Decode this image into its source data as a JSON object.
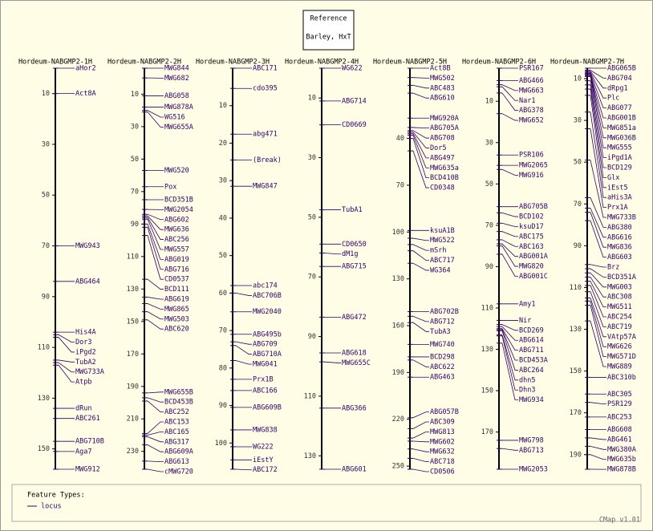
{
  "reference": {
    "title": "Reference",
    "label": "Barley, HxT"
  },
  "maps": [
    {
      "title": "Hordeum-NABGMP2-1H",
      "lim": [
        0,
        158
      ],
      "ticks": [
        10,
        30,
        50,
        70,
        90,
        110,
        130,
        150
      ],
      "features": [
        {
          "name": "aHor2",
          "pos": 0
        },
        {
          "name": "Act8A",
          "pos": 10
        },
        {
          "name": "MWG943",
          "pos": 70
        },
        {
          "name": "ABG464",
          "pos": 84
        },
        {
          "name": "His4A",
          "pos": 104
        },
        {
          "name": "Dor3",
          "pos": 105
        },
        {
          "name": "iPgd2",
          "pos": 106
        },
        {
          "name": "TubA2",
          "pos": 115
        },
        {
          "name": "MWG733A",
          "pos": 116
        },
        {
          "name": "Atpb",
          "pos": 117
        },
        {
          "name": "dRun",
          "pos": 134
        },
        {
          "name": "ABC261",
          "pos": 138
        },
        {
          "name": "ABG710B",
          "pos": 147
        },
        {
          "name": "Aga7",
          "pos": 151
        },
        {
          "name": "MWG912",
          "pos": 158
        }
      ]
    },
    {
      "title": "Hordeum-NABGMP2-2H",
      "lim": [
        -6,
        241
      ],
      "ticks": [
        10,
        30,
        50,
        70,
        90,
        110,
        130,
        150,
        170,
        190,
        210,
        230
      ],
      "features": [
        {
          "name": "MWG844",
          "pos": -6
        },
        {
          "name": "MWG682",
          "pos": 0
        },
        {
          "name": "ABG058",
          "pos": 11
        },
        {
          "name": "MWG878A",
          "pos": 18
        },
        {
          "name": "WG516",
          "pos": 20
        },
        {
          "name": "MWG655A",
          "pos": 21
        },
        {
          "name": "MWG520",
          "pos": 57
        },
        {
          "name": "Pox",
          "pos": 67
        },
        {
          "name": "BCD351B",
          "pos": 75
        },
        {
          "name": "MWG2054",
          "pos": 81
        },
        {
          "name": "ABG602",
          "pos": 84
        },
        {
          "name": "MWG636",
          "pos": 85
        },
        {
          "name": "ABC256",
          "pos": 86
        },
        {
          "name": "MWG557",
          "pos": 87
        },
        {
          "name": "ABG019",
          "pos": 90
        },
        {
          "name": "ABG716",
          "pos": 92
        },
        {
          "name": "CD0537",
          "pos": 97
        },
        {
          "name": "BCD111",
          "pos": 124
        },
        {
          "name": "ABG619",
          "pos": 135
        },
        {
          "name": "MWG865",
          "pos": 139
        },
        {
          "name": "MWG503",
          "pos": 144
        },
        {
          "name": "ABC620",
          "pos": 149
        },
        {
          "name": "MWG655B",
          "pos": 194
        },
        {
          "name": "BCD453B",
          "pos": 197
        },
        {
          "name": "ABC252",
          "pos": 199
        },
        {
          "name": "ABC153",
          "pos": 219
        },
        {
          "name": "ABC165",
          "pos": 220
        },
        {
          "name": "ABG317",
          "pos": 221
        },
        {
          "name": "ABG609A",
          "pos": 226
        },
        {
          "name": "ABG613",
          "pos": 236
        },
        {
          "name": "cMWG720",
          "pos": 241
        }
      ]
    },
    {
      "title": "Hordeum-NABGMP2-3H",
      "lim": [
        0,
        107
      ],
      "ticks": [
        10,
        20,
        30,
        40,
        50,
        60,
        70,
        80,
        90,
        100
      ],
      "features": [
        {
          "name": "ABC171",
          "pos": 0
        },
        {
          "name": "cdo395",
          "pos": 5.4
        },
        {
          "name": "abg471",
          "pos": 17.6
        },
        {
          "name": "(Break)",
          "pos": 24.5
        },
        {
          "name": "MWG847",
          "pos": 31.5
        },
        {
          "name": "abc174",
          "pos": 58
        },
        {
          "name": "ABC706B",
          "pos": 60
        },
        {
          "name": "MWG2040",
          "pos": 65
        },
        {
          "name": "ABG495b",
          "pos": 71
        },
        {
          "name": "ABG709",
          "pos": 73
        },
        {
          "name": "ABG710A",
          "pos": 74
        },
        {
          "name": "MWG041",
          "pos": 78
        },
        {
          "name": "Prx1B",
          "pos": 83
        },
        {
          "name": "ABC166",
          "pos": 86
        },
        {
          "name": "ABG609B",
          "pos": 90.5
        },
        {
          "name": "MWG838",
          "pos": 96.5
        },
        {
          "name": "WG222",
          "pos": 101
        },
        {
          "name": "iEstY",
          "pos": 104.5
        },
        {
          "name": "ABC172",
          "pos": 107
        }
      ]
    },
    {
      "title": "Hordeum-NABGMP2-4H",
      "lim": [
        0,
        134.5
      ],
      "ticks": [
        10,
        30,
        50,
        70,
        90,
        110,
        130
      ],
      "features": [
        {
          "name": "WG622",
          "pos": 0
        },
        {
          "name": "ABG714",
          "pos": 11
        },
        {
          "name": "CD0669",
          "pos": 19
        },
        {
          "name": "TubA1",
          "pos": 47.5
        },
        {
          "name": "CD0650",
          "pos": 59
        },
        {
          "name": "dM1g",
          "pos": 62
        },
        {
          "name": "ABG715",
          "pos": 66.5
        },
        {
          "name": "ABG472",
          "pos": 83.5
        },
        {
          "name": "ABG618",
          "pos": 95.5
        },
        {
          "name": "MWG655C",
          "pos": 98.5
        },
        {
          "name": "ABG366",
          "pos": 114
        },
        {
          "name": "ABG601",
          "pos": 134.5
        }
      ]
    },
    {
      "title": "Hordeum-NABGMP2-5H",
      "lim": [
        -5,
        252
      ],
      "ticks": [
        40,
        70,
        100,
        130,
        160,
        190,
        220,
        250
      ],
      "features": [
        {
          "name": "Act8B",
          "pos": -5
        },
        {
          "name": "MWG502",
          "pos": 1
        },
        {
          "name": "ABC483",
          "pos": 6
        },
        {
          "name": "ABG610",
          "pos": 11
        },
        {
          "name": "MWG920A",
          "pos": 27
        },
        {
          "name": "ABG705A",
          "pos": 33
        },
        {
          "name": "ABG708",
          "pos": 35
        },
        {
          "name": "Dor5",
          "pos": 36
        },
        {
          "name": "ABG497",
          "pos": 37
        },
        {
          "name": "MWG635a",
          "pos": 38
        },
        {
          "name": "BCD410B",
          "pos": 40
        },
        {
          "name": "CD0348",
          "pos": 48
        },
        {
          "name": "ksuA1B",
          "pos": 99
        },
        {
          "name": "MWG522",
          "pos": 104
        },
        {
          "name": "mSrh",
          "pos": 108
        },
        {
          "name": "ABC717",
          "pos": 112
        },
        {
          "name": "WG364",
          "pos": 120
        },
        {
          "name": "ABG702B",
          "pos": 151
        },
        {
          "name": "ABG712",
          "pos": 154
        },
        {
          "name": "TubA3",
          "pos": 158
        },
        {
          "name": "MWG740",
          "pos": 172
        },
        {
          "name": "BCD298",
          "pos": 180
        },
        {
          "name": "ABC622",
          "pos": 182
        },
        {
          "name": "ABG463",
          "pos": 193
        },
        {
          "name": "ABG057B",
          "pos": 219
        },
        {
          "name": "ABC309",
          "pos": 226
        },
        {
          "name": "MWG813",
          "pos": 232
        },
        {
          "name": "MWG602",
          "pos": 234
        },
        {
          "name": "MWG632",
          "pos": 239
        },
        {
          "name": "ABC718",
          "pos": 245
        },
        {
          "name": "CD0506",
          "pos": 252
        }
      ]
    },
    {
      "title": "Hordeum-NABGMP2-6H",
      "lim": [
        -6,
        188
      ],
      "ticks": [
        10,
        30,
        50,
        70,
        90,
        110,
        130,
        150,
        170
      ],
      "features": [
        {
          "name": "PSR167",
          "pos": -6
        },
        {
          "name": "ABG466",
          "pos": 0
        },
        {
          "name": "MWG663",
          "pos": 2
        },
        {
          "name": "Nar1",
          "pos": 3
        },
        {
          "name": "ABG378",
          "pos": 6
        },
        {
          "name": "MWG652",
          "pos": 16
        },
        {
          "name": "PSR106",
          "pos": 36
        },
        {
          "name": "MWG2065",
          "pos": 41
        },
        {
          "name": "MWG916",
          "pos": 43
        },
        {
          "name": "ABG705B",
          "pos": 61
        },
        {
          "name": "BCD102",
          "pos": 64
        },
        {
          "name": "ksuD17",
          "pos": 69
        },
        {
          "name": "ABC175",
          "pos": 73
        },
        {
          "name": "ABC163",
          "pos": 77
        },
        {
          "name": "ABG001A",
          "pos": 79
        },
        {
          "name": "MWG820",
          "pos": 80
        },
        {
          "name": "ABG001C",
          "pos": 84
        },
        {
          "name": "Amy1",
          "pos": 108
        },
        {
          "name": "Nir",
          "pos": 116
        },
        {
          "name": "BCD269",
          "pos": 118
        },
        {
          "name": "ABG614",
          "pos": 119
        },
        {
          "name": "ABG711",
          "pos": 120
        },
        {
          "name": "BCD453A",
          "pos": 120.5
        },
        {
          "name": "ABC264",
          "pos": 121
        },
        {
          "name": "dhn5",
          "pos": 123
        },
        {
          "name": "Dhn3",
          "pos": 123.5
        },
        {
          "name": "MWG934",
          "pos": 127
        },
        {
          "name": "MWG798",
          "pos": 174
        },
        {
          "name": "ABG713",
          "pos": 178
        },
        {
          "name": "MWG2053",
          "pos": 188
        }
      ]
    },
    {
      "title": "Hordeum-NABGMP2-7H",
      "lim": [
        5,
        197
      ],
      "ticks": [
        10,
        30,
        50,
        70,
        90,
        110,
        130,
        150,
        170,
        190
      ],
      "features": [
        {
          "name": "ABG065B",
          "pos": 5
        },
        {
          "name": "ABG704",
          "pos": 6
        },
        {
          "name": "dRpg1",
          "pos": 6.5
        },
        {
          "name": "Plc",
          "pos": 7
        },
        {
          "name": "ABG077",
          "pos": 7.5
        },
        {
          "name": "ABG001B",
          "pos": 8
        },
        {
          "name": "MWG851a",
          "pos": 8.2
        },
        {
          "name": "MWG036B",
          "pos": 8.5
        },
        {
          "name": "MWG555",
          "pos": 9
        },
        {
          "name": "iPgd1A",
          "pos": 11
        },
        {
          "name": "BCD129",
          "pos": 13
        },
        {
          "name": "Glx",
          "pos": 15
        },
        {
          "name": "iEst5",
          "pos": 18
        },
        {
          "name": "aHis3A",
          "pos": 26
        },
        {
          "name": "Prx1A",
          "pos": 34
        },
        {
          "name": "MWG733B",
          "pos": 49
        },
        {
          "name": "ABG380",
          "pos": 67
        },
        {
          "name": "ABG616",
          "pos": 72
        },
        {
          "name": "MWG836",
          "pos": 74
        },
        {
          "name": "ABG603",
          "pos": 78
        },
        {
          "name": "Brz",
          "pos": 99
        },
        {
          "name": "BCD351A",
          "pos": 101
        },
        {
          "name": "MWG003",
          "pos": 103
        },
        {
          "name": "ABC308",
          "pos": 105
        },
        {
          "name": "MWG511",
          "pos": 107
        },
        {
          "name": "ABC254",
          "pos": 109
        },
        {
          "name": "ABC719",
          "pos": 112
        },
        {
          "name": "VAtp57A",
          "pos": 115
        },
        {
          "name": "MWG626",
          "pos": 116.5
        },
        {
          "name": "MWG571D",
          "pos": 118.5
        },
        {
          "name": "MWG889",
          "pos": 126
        },
        {
          "name": "ABC310b",
          "pos": 153
        },
        {
          "name": "ABC305",
          "pos": 161
        },
        {
          "name": "PSR129",
          "pos": 165
        },
        {
          "name": "ABC253",
          "pos": 172
        },
        {
          "name": "ABG608",
          "pos": 178
        },
        {
          "name": "ABG461",
          "pos": 182
        },
        {
          "name": "MWG380A",
          "pos": 186
        },
        {
          "name": "MWG635b",
          "pos": 190
        },
        {
          "name": "MWG878B",
          "pos": 197
        }
      ]
    }
  ],
  "legend": {
    "title": "Feature Types:",
    "items": [
      "locus"
    ]
  },
  "footer": "CMap v1.01"
}
